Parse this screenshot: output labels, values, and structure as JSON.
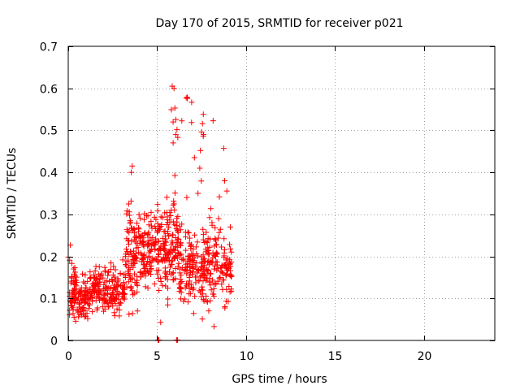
{
  "chart_data": {
    "type": "scatter",
    "title": "Day 170 of 2015, SRMTID for receiver p021",
    "xlabel": "GPS time / hours",
    "ylabel": "SRMTID / TECUs",
    "xlim": [
      0,
      24
    ],
    "ylim": [
      0,
      0.7
    ],
    "xticks": [
      0,
      5,
      10,
      15,
      20
    ],
    "xtick_labels": [
      "0",
      "5",
      "10",
      "15",
      "20"
    ],
    "yticks": [
      0,
      0.1,
      0.2,
      0.3,
      0.4,
      0.5,
      0.6,
      0.7
    ],
    "ytick_labels": [
      "0",
      "0.1",
      "0.2",
      "0.3",
      "0.4",
      "0.5",
      "0.6",
      "0.7"
    ],
    "grid": true,
    "marker": "+",
    "color": "#ff0000",
    "seed": 170,
    "series": [
      {
        "name": "p021",
        "segments": [
          {
            "x_from": 0.0,
            "x_to": 0.5,
            "count": 60,
            "base": 0.11,
            "spread": 0.05,
            "max": 0.23
          },
          {
            "x_from": 0.5,
            "x_to": 1.2,
            "count": 70,
            "base": 0.09,
            "spread": 0.04,
            "max": 0.17
          },
          {
            "x_from": 1.2,
            "x_to": 2.4,
            "count": 120,
            "base": 0.12,
            "spread": 0.045,
            "max": 0.18
          },
          {
            "x_from": 2.4,
            "x_to": 3.2,
            "count": 80,
            "base": 0.11,
            "spread": 0.04,
            "max": 0.2
          },
          {
            "x_from": 3.2,
            "x_to": 4.0,
            "count": 100,
            "base": 0.2,
            "spread": 0.09,
            "max": 0.42
          },
          {
            "x_from": 4.0,
            "x_to": 4.8,
            "count": 90,
            "base": 0.2,
            "spread": 0.07,
            "max": 0.33
          },
          {
            "x_from": 4.8,
            "x_to": 5.6,
            "count": 100,
            "base": 0.22,
            "spread": 0.08,
            "max": 0.36
          },
          {
            "x_from": 5.6,
            "x_to": 6.2,
            "count": 80,
            "base": 0.22,
            "spread": 0.1,
            "max": 0.61
          },
          {
            "x_from": 6.2,
            "x_to": 7.2,
            "count": 110,
            "base": 0.17,
            "spread": 0.08,
            "max": 0.58
          },
          {
            "x_from": 7.2,
            "x_to": 8.2,
            "count": 110,
            "base": 0.17,
            "spread": 0.07,
            "max": 0.54
          },
          {
            "x_from": 8.2,
            "x_to": 9.2,
            "count": 90,
            "base": 0.17,
            "spread": 0.08,
            "max": 0.46
          }
        ]
      }
    ],
    "outliers": [
      {
        "x": 5.85,
        "y": 0.605
      },
      {
        "x": 5.95,
        "y": 0.6
      },
      {
        "x": 6.0,
        "y": 0.553
      },
      {
        "x": 5.9,
        "y": 0.52
      },
      {
        "x": 6.05,
        "y": 0.49
      },
      {
        "x": 6.7,
        "y": 0.576
      },
      {
        "x": 7.6,
        "y": 0.538
      },
      {
        "x": 7.55,
        "y": 0.516
      },
      {
        "x": 7.5,
        "y": 0.496
      },
      {
        "x": 8.75,
        "y": 0.457
      },
      {
        "x": 3.6,
        "y": 0.415
      },
      {
        "x": 3.55,
        "y": 0.4
      },
      {
        "x": 7.1,
        "y": 0.435
      },
      {
        "x": 7.4,
        "y": 0.41
      },
      {
        "x": 7.3,
        "y": 0.35
      },
      {
        "x": 8.8,
        "y": 0.38
      },
      {
        "x": 5.05,
        "y": 0.001
      },
      {
        "x": 5.1,
        "y": 0.001
      },
      {
        "x": 6.1,
        "y": 0.001
      },
      {
        "x": 6.15,
        "y": 0.001
      },
      {
        "x": 5.2,
        "y": 0.043
      },
      {
        "x": 8.2,
        "y": 0.033
      }
    ]
  }
}
